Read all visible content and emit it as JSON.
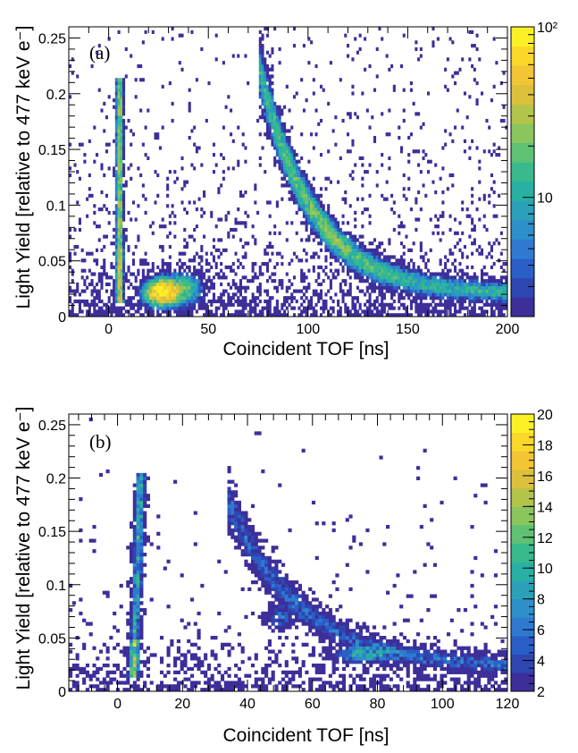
{
  "chart_data": [
    {
      "type": "heatmap",
      "panel_label": "(a)",
      "xlabel": "Coincident TOF [ns]",
      "ylabel": "Light Yield [relative to 477 keV e⁻]",
      "xlim": [
        -20,
        200
      ],
      "ylim": [
        0,
        0.26
      ],
      "x_ticks": [
        {
          "value": 0,
          "label": "0"
        },
        {
          "value": 50,
          "label": "50"
        },
        {
          "value": 100,
          "label": "100"
        },
        {
          "value": 150,
          "label": "150"
        },
        {
          "value": 200,
          "label": "200"
        }
      ],
      "y_ticks": [
        {
          "value": 0,
          "label": "0"
        },
        {
          "value": 0.05,
          "label": "0.05"
        },
        {
          "value": 0.1,
          "label": "0.1"
        },
        {
          "value": 0.15,
          "label": "0.15"
        },
        {
          "value": 0.2,
          "label": "0.2"
        },
        {
          "value": 0.25,
          "label": "0.25"
        }
      ],
      "colorbar": {
        "scale": "log",
        "range": [
          2,
          100
        ],
        "ticks": [
          {
            "value": 10,
            "label": "10"
          },
          {
            "value": 100,
            "label": "10²"
          }
        ]
      },
      "features": [
        {
          "name": "gamma band",
          "x": 5,
          "y_range": [
            0.01,
            0.21
          ],
          "peak_counts": 40
        },
        {
          "name": "neutron hot spot",
          "x": 27,
          "y": 0.022,
          "peak_counts": 100
        },
        {
          "name": "neutron band",
          "x_range": [
            78,
            200
          ],
          "y_range": [
            0.2,
            0.02
          ],
          "peak_counts": 35
        }
      ]
    },
    {
      "type": "heatmap",
      "panel_label": "(b)",
      "xlabel": "Coincident TOF [ns]",
      "ylabel": "Light Yield [relative to 477 keV e⁻]",
      "xlim": [
        -15,
        120
      ],
      "ylim": [
        0,
        0.26
      ],
      "x_ticks": [
        {
          "value": 0,
          "label": "0"
        },
        {
          "value": 20,
          "label": "20"
        },
        {
          "value": 40,
          "label": "40"
        },
        {
          "value": 60,
          "label": "60"
        },
        {
          "value": 80,
          "label": "80"
        },
        {
          "value": 100,
          "label": "100"
        },
        {
          "value": 120,
          "label": "120"
        }
      ],
      "y_ticks": [
        {
          "value": 0,
          "label": "0"
        },
        {
          "value": 0.05,
          "label": "0.05"
        },
        {
          "value": 0.1,
          "label": "0.1"
        },
        {
          "value": 0.15,
          "label": "0.15"
        },
        {
          "value": 0.2,
          "label": "0.2"
        },
        {
          "value": 0.25,
          "label": "0.25"
        }
      ],
      "colorbar": {
        "scale": "linear",
        "range": [
          2,
          20
        ],
        "ticks": [
          {
            "value": 2,
            "label": "2"
          },
          {
            "value": 4,
            "label": "4"
          },
          {
            "value": 6,
            "label": "6"
          },
          {
            "value": 8,
            "label": "8"
          },
          {
            "value": 10,
            "label": "10"
          },
          {
            "value": 12,
            "label": "12"
          },
          {
            "value": 14,
            "label": "14"
          },
          {
            "value": 16,
            "label": "16"
          },
          {
            "value": 18,
            "label": "18"
          },
          {
            "value": 20,
            "label": "20"
          }
        ]
      },
      "features": [
        {
          "name": "gamma band",
          "x": 6,
          "y_range": [
            0.01,
            0.2
          ],
          "peak_counts": 20
        },
        {
          "name": "neutron band",
          "x_range": [
            35,
            120
          ],
          "y_range": [
            0.17,
            0.02
          ],
          "peak_counts": 12
        },
        {
          "name": "cluster",
          "x": 75,
          "y": 0.035,
          "peak_counts": 14
        }
      ]
    }
  ]
}
